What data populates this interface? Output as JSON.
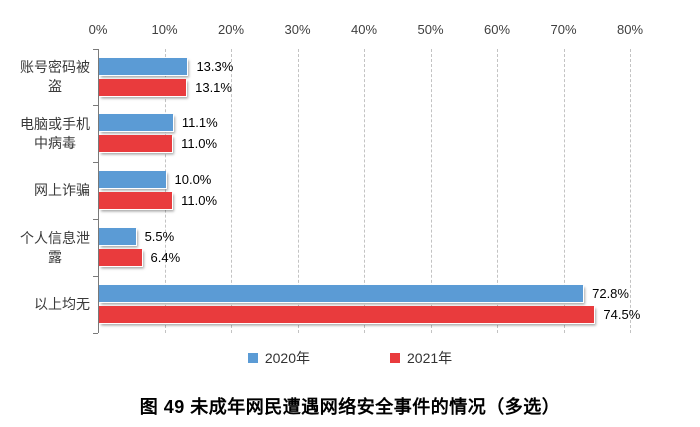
{
  "chart_data": {
    "type": "bar",
    "orientation": "horizontal-grouped",
    "title": "",
    "caption": "图 49 未成年网民遭遇网络安全事件的情况（多选）",
    "categories": [
      "账号密码被\n盗",
      "电脑或手机\n中病毒",
      "网上诈骗",
      "个人信息泄\n露",
      "以上均无"
    ],
    "series": [
      {
        "name": "2020年",
        "color": "#5B9BD5",
        "values": [
          13.3,
          11.1,
          10.0,
          5.5,
          72.8
        ],
        "value_labels": [
          "13.3%",
          "11.1%",
          "10.0%",
          "5.5%",
          "72.8%"
        ]
      },
      {
        "name": "2021年",
        "color": "#E93B3D",
        "values": [
          13.1,
          11.0,
          11.0,
          6.4,
          74.5
        ],
        "value_labels": [
          "13.1%",
          "11.0%",
          "11.0%",
          "6.4%",
          "74.5%"
        ]
      }
    ],
    "x_axis": {
      "position": "top",
      "min": 0,
      "max": 80,
      "tick_step": 10,
      "tick_labels": [
        "0%",
        "10%",
        "20%",
        "30%",
        "40%",
        "50%",
        "60%",
        "70%",
        "80%"
      ]
    },
    "gridlines": {
      "show": true,
      "style": "dashed",
      "color": "#C3C3C3"
    },
    "legend": {
      "position": "bottom",
      "entries": [
        "2020年",
        "2021年"
      ]
    },
    "colors": {
      "series_2020": "#5B9BD5",
      "series_2021": "#E93B3D",
      "axis": "#7A7A7A",
      "text": "#3A3A3A"
    }
  }
}
